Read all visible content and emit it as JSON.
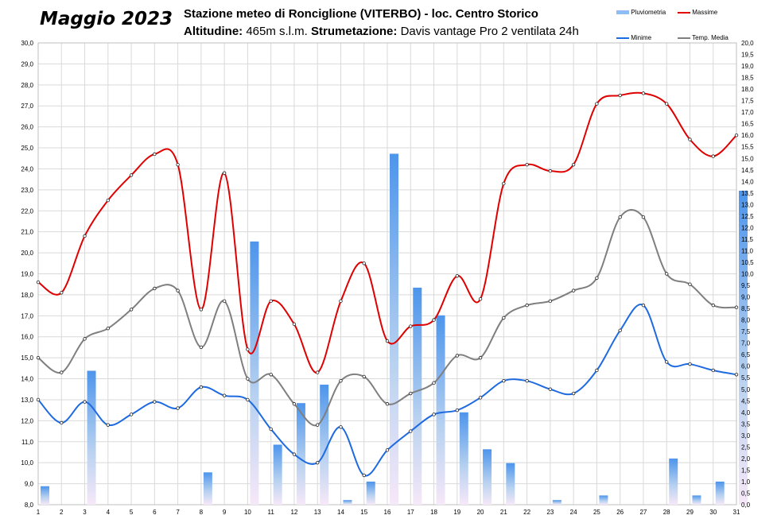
{
  "header": {
    "month_title": "Maggio 2023",
    "station": "Stazione meteo di Ronciglione (VITERBO) - loc. Centro Storico",
    "altitude_label": "Altitudine:",
    "altitude_value": "465m s.l.m.",
    "instrument_label": "Strumetazione:",
    "instrument_value": "Davis vantage Pro 2  ventilata 24h"
  },
  "colors": {
    "rain": "#5aa0ee",
    "max": "#e00000",
    "min": "#1e6ae0",
    "mean": "#7f7f7f",
    "grid": "#d9d9d9"
  },
  "chart_data": {
    "type": "line",
    "title": "",
    "x": [
      1,
      2,
      3,
      4,
      5,
      6,
      7,
      8,
      9,
      10,
      11,
      12,
      13,
      14,
      15,
      16,
      17,
      18,
      19,
      20,
      21,
      22,
      23,
      24,
      25,
      26,
      27,
      28,
      29,
      30,
      31
    ],
    "x_tick_labels": [
      "1",
      "2",
      "3",
      "4",
      "5",
      "6",
      "7",
      "8",
      "9",
      "10",
      "11",
      "12",
      "13",
      "14",
      "15",
      "16",
      "17",
      "18",
      "19",
      "20",
      "21",
      "22",
      "23",
      "24",
      "25",
      "26",
      "27",
      "28",
      "29",
      "30",
      "31"
    ],
    "y_left": {
      "range": [
        8.0,
        30.0
      ],
      "step": 1.0,
      "tick_labels": [
        "8,0",
        "9,0",
        "10,0",
        "11,0",
        "12,0",
        "13,0",
        "14,0",
        "15,0",
        "16,0",
        "17,0",
        "18,0",
        "19,0",
        "20,0",
        "21,0",
        "22,0",
        "23,0",
        "24,0",
        "25,0",
        "26,0",
        "27,0",
        "28,0",
        "29,0",
        "30,0"
      ]
    },
    "y_right": {
      "range": [
        0.0,
        20.0
      ],
      "step": 0.5,
      "tick_labels": [
        "0,0",
        "0,5",
        "1,0",
        "1,5",
        "2,0",
        "2,5",
        "3,0",
        "3,5",
        "4,0",
        "4,5",
        "5,0",
        "5,5",
        "6,0",
        "6,5",
        "7,0",
        "7,5",
        "8,0",
        "8,5",
        "9,0",
        "9,5",
        "10,0",
        "10,5",
        "11,0",
        "11,5",
        "12,0",
        "12,5",
        "13,0",
        "13,5",
        "14,0",
        "14,5",
        "15,0",
        "15,5",
        "16,0",
        "16,5",
        "17,0",
        "17,5",
        "18,0",
        "18,5",
        "19,0",
        "19,5",
        "20,0"
      ]
    },
    "grid": true,
    "legend_position": "top-right",
    "series": [
      {
        "name": "Pluviometria",
        "kind": "bar",
        "axis": "right",
        "color": "#5aa0ee",
        "values": [
          0.8,
          0,
          5.8,
          0,
          0,
          0,
          0,
          1.4,
          0,
          11.4,
          2.6,
          4.4,
          5.2,
          0.2,
          1.0,
          15.2,
          9.4,
          8.2,
          4.0,
          2.4,
          1.8,
          0,
          0.2,
          0,
          0.4,
          0,
          0,
          2.0,
          0.4,
          1.0,
          13.6
        ]
      },
      {
        "name": "Massime",
        "kind": "line",
        "axis": "left",
        "color": "#e00000",
        "values": [
          18.6,
          18.1,
          20.8,
          22.5,
          23.7,
          24.7,
          24.2,
          17.3,
          23.8,
          15.4,
          17.7,
          16.6,
          14.3,
          17.7,
          19.5,
          15.8,
          16.5,
          16.8,
          18.9,
          17.8,
          23.3,
          24.2,
          23.9,
          24.2,
          27.1,
          27.5,
          27.6,
          27.1,
          25.4,
          24.6,
          25.6
        ]
      },
      {
        "name": "Minime",
        "kind": "line",
        "axis": "left",
        "color": "#1e6ae0",
        "values": [
          13.0,
          11.9,
          12.9,
          11.8,
          12.3,
          12.9,
          12.6,
          13.6,
          13.2,
          13.0,
          11.6,
          10.4,
          10.0,
          11.7,
          9.4,
          10.6,
          11.5,
          12.3,
          12.5,
          13.1,
          13.9,
          13.9,
          13.5,
          13.3,
          14.4,
          16.3,
          17.5,
          14.8,
          14.7,
          14.4,
          14.2
        ]
      },
      {
        "name": "Temp. Media",
        "kind": "line",
        "axis": "left",
        "color": "#7f7f7f",
        "values": [
          15.0,
          14.3,
          15.9,
          16.4,
          17.3,
          18.3,
          18.2,
          15.5,
          17.7,
          14.0,
          14.2,
          12.8,
          11.8,
          13.9,
          14.1,
          12.8,
          13.3,
          13.8,
          15.1,
          15.0,
          16.9,
          17.5,
          17.7,
          18.2,
          18.8,
          21.7,
          21.7,
          19.0,
          18.5,
          17.5,
          17.4
        ]
      }
    ]
  }
}
